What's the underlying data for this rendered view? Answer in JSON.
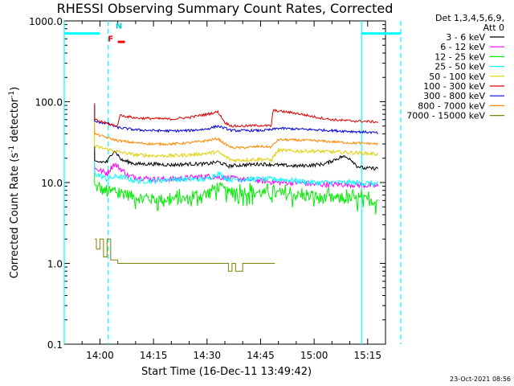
{
  "chart_data": {
    "type": "line",
    "title": "RHESSI Observing Summary Count Rates, Corrected",
    "xlabel": "Start Time (16-Dec-11 13:49:42)",
    "ylabel": "Corrected Count Rate (s",
    "ylabel_sup": "-1",
    "ylabel_mid": " detector",
    "ylabel_end": ")",
    "footer": "23-Oct-2021 08:56",
    "x_range_min": [
      -10,
      80
    ],
    "y_scale": "log",
    "ylim": [
      0.1,
      1000
    ],
    "yticks": [
      0.1,
      1,
      10,
      100,
      1000
    ],
    "ytick_labels": [
      "0.1",
      "1.0",
      "10.0",
      "100.0",
      "1000.0"
    ],
    "xticks_min": [
      0,
      15,
      30,
      45,
      60,
      75
    ],
    "xtick_labels": [
      "14:00",
      "14:15",
      "14:30",
      "14:45",
      "15:00",
      "15:15"
    ],
    "legend": {
      "header1": "Det 1,3,4,5,6,9,",
      "header2": "Att 0",
      "placement": "right",
      "entries": [
        {
          "label": "3 - 6 keV",
          "color": "#000000"
        },
        {
          "label": "6 - 12 keV",
          "color": "#ff00ff"
        },
        {
          "label": "12 - 25 keV",
          "color": "#00ee00"
        },
        {
          "label": "25 - 50 keV",
          "color": "#00ffff"
        },
        {
          "label": "50 - 100 keV",
          "color": "#e0d000"
        },
        {
          "label": "100 - 300 keV",
          "color": "#e00000"
        },
        {
          "label": "300 - 800 keV",
          "color": "#0000e0"
        },
        {
          "label": "800 - 7000 keV",
          "color": "#ff8800"
        },
        {
          "label": "7000 - 15000 keV",
          "color": "#808000"
        }
      ]
    },
    "series": [
      {
        "name": "3 - 6 keV",
        "color": "#000000",
        "x": [
          -1.5,
          2,
          4,
          6,
          10,
          15,
          20,
          25,
          30,
          33,
          36,
          40,
          45,
          50,
          55,
          60,
          63,
          68,
          70,
          72,
          74,
          76,
          78
        ],
        "y": [
          18,
          18,
          25,
          19,
          17,
          17,
          16.5,
          17,
          17,
          18,
          16,
          16.5,
          17,
          16.5,
          16,
          16.5,
          17,
          21,
          20,
          16,
          15,
          15,
          15
        ]
      },
      {
        "name": "6 - 12 keV",
        "color": "#ff00ff",
        "x": [
          -1.5,
          2,
          4,
          8,
          15,
          20,
          25,
          30,
          35,
          40,
          45,
          50,
          55,
          60,
          65,
          70,
          75,
          78
        ],
        "y": [
          15,
          13,
          17,
          12,
          11,
          11,
          11.5,
          12,
          11.5,
          11,
          10.5,
          10,
          10,
          9.5,
          9.5,
          9.5,
          9.2,
          9
        ]
      },
      {
        "name": "12 - 25 keV",
        "color": "#00ee00",
        "x": [
          -1.5,
          2,
          5,
          10,
          15,
          20,
          25,
          30,
          33,
          36,
          40,
          45,
          50,
          55,
          60,
          65,
          70,
          75,
          78
        ],
        "y": [
          9,
          7.5,
          7.8,
          6.6,
          6.3,
          6.2,
          6.3,
          7.4,
          9,
          7.5,
          7.8,
          7.5,
          7.3,
          7,
          6.6,
          6.4,
          6.3,
          6.1,
          6.0
        ]
      },
      {
        "name": "25 - 50 keV",
        "color": "#00ffff",
        "x": [
          -1.5,
          2,
          5,
          10,
          15,
          20,
          25,
          30,
          33,
          36,
          40,
          45,
          50,
          55,
          60,
          65,
          70,
          75,
          78
        ],
        "y": [
          13,
          11,
          12,
          10.5,
          10.5,
          11,
          11,
          11,
          13,
          11,
          11,
          11,
          11,
          10.5,
          10,
          10,
          10,
          9.8,
          9.6
        ]
      },
      {
        "name": "50 - 100 keV",
        "color": "#e0d000",
        "x": [
          -1.5,
          2,
          5,
          10,
          15,
          20,
          25,
          30,
          33,
          35,
          37,
          40,
          45,
          48,
          50,
          55,
          60,
          65,
          70,
          75,
          78
        ],
        "y": [
          28,
          26,
          24,
          22,
          21.5,
          21.5,
          22,
          23,
          24,
          21,
          19,
          19,
          19.5,
          19,
          25,
          24.5,
          24.5,
          24,
          23.5,
          23,
          22.5
        ]
      },
      {
        "name": "100 - 300 keV",
        "color": "#e00000",
        "x": [
          -1.5,
          3,
          5,
          5.5,
          10,
          15,
          20,
          25,
          30,
          33,
          35,
          37,
          40,
          45,
          48,
          48.5,
          52,
          55,
          60,
          65,
          70,
          75,
          78
        ],
        "y": [
          60,
          52,
          50,
          68,
          63,
          62,
          61,
          64,
          70,
          75,
          55,
          50,
          50,
          51,
          50,
          78,
          75,
          72,
          65,
          60,
          58,
          57,
          56
        ]
      },
      {
        "name": "300 - 800 keV",
        "color": "#0000e0",
        "x": [
          -1.5,
          2,
          5,
          10,
          15,
          20,
          25,
          30,
          33,
          35,
          37,
          40,
          45,
          48,
          50,
          55,
          60,
          65,
          70,
          75,
          78
        ],
        "y": [
          57,
          54,
          48,
          45,
          44,
          43.5,
          44,
          46,
          50,
          47,
          44,
          44,
          44,
          45,
          47,
          46,
          45,
          44,
          43,
          42,
          41
        ]
      },
      {
        "name": "800 - 7000 keV",
        "color": "#ff8800",
        "x": [
          -1.5,
          2,
          5,
          10,
          15,
          20,
          25,
          30,
          33,
          35,
          37,
          40,
          45,
          48,
          50,
          55,
          60,
          65,
          70,
          75,
          78
        ],
        "y": [
          40,
          36,
          33,
          31,
          30,
          30,
          31,
          33,
          35,
          30,
          27,
          27,
          28,
          27.5,
          34,
          33.5,
          33,
          32,
          31,
          30.5,
          30
        ]
      },
      {
        "name": "7000 - 15000 keV",
        "color": "#808000",
        "x": [
          -1.5,
          -1,
          0,
          1,
          2,
          3,
          5,
          8,
          12,
          17,
          20,
          23,
          27,
          30,
          35,
          36,
          37,
          38,
          40,
          43,
          46,
          49
        ],
        "y": [
          2,
          1.5,
          2,
          1.2,
          2,
          1.1,
          1.0,
          1.0,
          1.0,
          1.0,
          1.0,
          1.0,
          1.0,
          1.0,
          1.0,
          0.8,
          1.0,
          0.8,
          1.0,
          1.0,
          1.0,
          1.0
        ]
      }
    ],
    "annotations": {
      "vertical_lines_min": [
        -10,
        2.3,
        73.3,
        84.3
      ],
      "vertical_line_styles": [
        "solid",
        "dashed",
        "solid",
        "dashed"
      ],
      "vertical_line_color": "#00ffff",
      "bars": [
        {
          "x": [
            -10,
            0
          ],
          "y": 700,
          "color": "#00ffff"
        },
        {
          "x": [
            73.3,
            84.3
          ],
          "y": 700,
          "color": "#00ffff"
        },
        {
          "x": [
            5,
            7
          ],
          "y": 550,
          "color": "#ff0000"
        }
      ],
      "markers": [
        {
          "label": "N",
          "x": 5.3,
          "y": 800,
          "color": "#00cccc"
        },
        {
          "label": "F",
          "x": 3.0,
          "y": 560,
          "color": "#ff0000"
        }
      ]
    }
  }
}
